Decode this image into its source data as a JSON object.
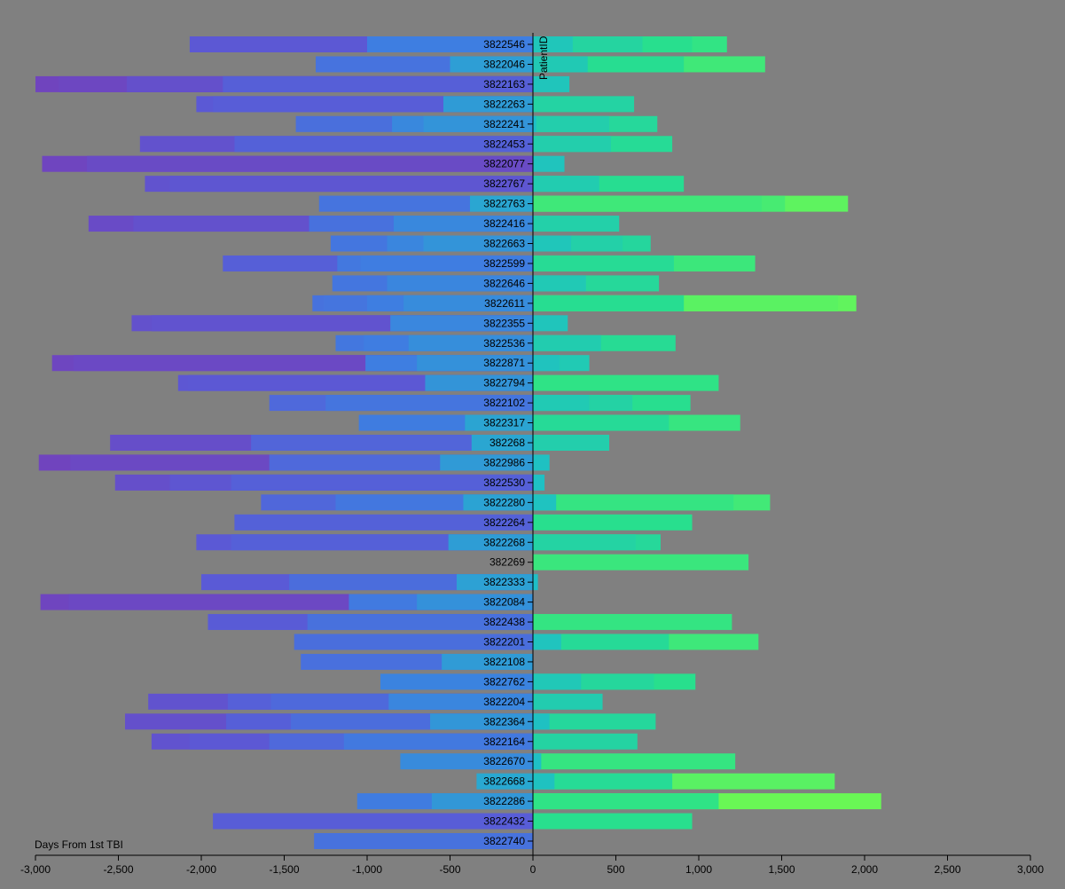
{
  "chart_data": {
    "type": "bar",
    "orientation": "horizontal",
    "stacked": "diverging",
    "xlabel": "Days From 1st TBI",
    "ylabel": "PatientID",
    "xlim": [
      -3000,
      3000
    ],
    "xticks": [
      -3000,
      -2500,
      -2000,
      -1500,
      -1000,
      -500,
      0,
      500,
      1000,
      1500,
      2000,
      2500,
      3000
    ],
    "xtick_labels": [
      "-3,000",
      "-2,500",
      "-2,000",
      "-1,500",
      "-1,000",
      "-500",
      "0",
      "500",
      "1,000",
      "1,500",
      "2,000",
      "2,500",
      "3,000"
    ],
    "grid": false,
    "rows": [
      {
        "id": "3822546",
        "neg": [
          -1000,
          -2070
        ],
        "pos": [
          240,
          660,
          960,
          1170
        ]
      },
      {
        "id": "3822046",
        "neg": [
          -500,
          -1310
        ],
        "pos": [
          330,
          910,
          1400
        ]
      },
      {
        "id": "3822163",
        "neg": [
          -1870,
          -2450,
          -2860,
          -3000
        ],
        "pos": [
          220
        ]
      },
      {
        "id": "3822263",
        "neg": [
          -540,
          -1930,
          -2030
        ],
        "pos": [
          610
        ]
      },
      {
        "id": "3822241",
        "neg": [
          -660,
          -850,
          -1430
        ],
        "pos": [
          20,
          460,
          750
        ]
      },
      {
        "id": "3822453",
        "neg": [
          -1800,
          -2370
        ],
        "pos": [
          470,
          840
        ]
      },
      {
        "id": "3822077",
        "neg": [
          -2690,
          -2960
        ],
        "pos": [
          190
        ]
      },
      {
        "id": "3822767",
        "neg": [
          -2190,
          -2340
        ],
        "pos": [
          400,
          910
        ]
      },
      {
        "id": "3822763",
        "neg": [
          -380,
          -1290
        ],
        "pos": [
          1380,
          1520,
          1900
        ]
      },
      {
        "id": "3822416",
        "neg": [
          -840,
          -1350,
          -2410,
          -2680
        ],
        "pos": [
          520
        ]
      },
      {
        "id": "3822663",
        "neg": [
          -660,
          -880,
          -1220
        ],
        "pos": [
          230,
          540,
          710
        ]
      },
      {
        "id": "3822599",
        "neg": [
          -1040,
          -1180,
          -1870
        ],
        "pos": [
          850,
          1340
        ]
      },
      {
        "id": "3822646",
        "neg": [
          -880,
          -1210
        ],
        "pos": [
          320,
          760
        ]
      },
      {
        "id": "3822611",
        "neg": [
          -780,
          -1000,
          -1260,
          -1330
        ],
        "pos": [
          910,
          1840,
          1950
        ]
      },
      {
        "id": "3822355",
        "neg": [
          -860,
          -2300,
          -2420
        ],
        "pos": [
          210
        ]
      },
      {
        "id": "3822536",
        "neg": [
          -750,
          -1020,
          -1190
        ],
        "pos": [
          410,
          860
        ]
      },
      {
        "id": "3822871",
        "neg": [
          -700,
          -1010,
          -2770,
          -2900
        ],
        "pos": [
          160,
          340
        ]
      },
      {
        "id": "3822794",
        "neg": [
          -650,
          -2080,
          -2140
        ],
        "pos": [
          1120
        ]
      },
      {
        "id": "3822102",
        "neg": [
          -1250,
          -1590
        ],
        "pos": [
          340,
          600,
          950
        ]
      },
      {
        "id": "3822317",
        "neg": [
          -410,
          -1050
        ],
        "pos": [
          820,
          1250
        ]
      },
      {
        "id": "382268",
        "neg": [
          -370,
          -1700,
          -2550
        ],
        "pos": [
          460
        ]
      },
      {
        "id": "3822986",
        "neg": [
          -560,
          -1590,
          -2790,
          -2980
        ],
        "pos": [
          100
        ]
      },
      {
        "id": "3822530",
        "neg": [
          -1820,
          -2190,
          -2520
        ],
        "pos": [
          70
        ]
      },
      {
        "id": "3822280",
        "neg": [
          -420,
          -1190,
          -1640
        ],
        "pos": [
          140,
          1210,
          1430
        ]
      },
      {
        "id": "3822264",
        "neg": [
          -1800
        ],
        "pos": [
          960
        ]
      },
      {
        "id": "3822268",
        "neg": [
          -510,
          -1820,
          -2030
        ],
        "pos": [
          620,
          770
        ]
      },
      {
        "id": "382269",
        "neg": [],
        "pos": [
          1300
        ]
      },
      {
        "id": "3822333",
        "neg": [
          -460,
          -1470,
          -2000
        ],
        "pos": [
          30
        ]
      },
      {
        "id": "3822084",
        "neg": [
          -700,
          -1110,
          -2800,
          -2970
        ],
        "pos": []
      },
      {
        "id": "3822438",
        "neg": [
          -1360,
          -1960
        ],
        "pos": [
          1200
        ]
      },
      {
        "id": "3822201",
        "neg": [
          -1440
        ],
        "pos": [
          170,
          820,
          1360
        ]
      },
      {
        "id": "3822108",
        "neg": [
          -550,
          -1400
        ],
        "pos": []
      },
      {
        "id": "3822762",
        "neg": [
          -920
        ],
        "pos": [
          290,
          730,
          980
        ]
      },
      {
        "id": "3822204",
        "neg": [
          -870,
          -1580,
          -1840,
          -2320
        ],
        "pos": [
          420
        ]
      },
      {
        "id": "3822364",
        "neg": [
          -620,
          -1460,
          -1850,
          -2460
        ],
        "pos": [
          100,
          740
        ]
      },
      {
        "id": "3822164",
        "neg": [
          -1140,
          -1590,
          -2070,
          -2300
        ],
        "pos": [
          630
        ]
      },
      {
        "id": "3822670",
        "neg": [
          -800
        ],
        "pos": [
          50,
          1220
        ]
      },
      {
        "id": "3822668",
        "neg": [
          -340
        ],
        "pos": [
          130,
          840,
          1820
        ]
      },
      {
        "id": "3822286",
        "neg": [
          -610,
          -1060
        ],
        "pos": [
          1120,
          2100
        ]
      },
      {
        "id": "3822432",
        "neg": [
          -1930
        ],
        "pos": [
          960
        ]
      },
      {
        "id": "3822740",
        "neg": [
          -1320
        ],
        "pos": []
      }
    ]
  }
}
